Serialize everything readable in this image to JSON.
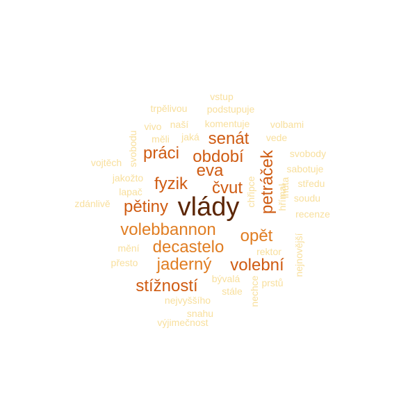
{
  "colors": {
    "darkest": "#5c2606",
    "dark": "#cf5b12",
    "medium": "#e07d22",
    "light": "#f8df9c",
    "background": "#ffffff"
  },
  "words": [
    {
      "text": "vlády",
      "weight": 5,
      "color": "#5c2606"
    },
    {
      "text": "petráček",
      "weight": 4,
      "color": "#cf5b12"
    },
    {
      "text": "senát",
      "weight": 3,
      "color": "#cf5b12"
    },
    {
      "text": "období",
      "weight": 3,
      "color": "#cf5b12"
    },
    {
      "text": "práci",
      "weight": 3,
      "color": "#cf5b12"
    },
    {
      "text": "eva",
      "weight": 3,
      "color": "#cf5b12"
    },
    {
      "text": "fyzik",
      "weight": 3,
      "color": "#cf5b12"
    },
    {
      "text": "čvut",
      "weight": 3,
      "color": "#cf5b12"
    },
    {
      "text": "pětiny",
      "weight": 3,
      "color": "#cf5b12"
    },
    {
      "text": "volebbannon",
      "weight": 3,
      "color": "#e07d22"
    },
    {
      "text": "opět",
      "weight": 3,
      "color": "#e07d22"
    },
    {
      "text": "decastelo",
      "weight": 3,
      "color": "#e07d22"
    },
    {
      "text": "jaderný",
      "weight": 3,
      "color": "#e07d22"
    },
    {
      "text": "volební",
      "weight": 3,
      "color": "#cf5b12"
    },
    {
      "text": "stížností",
      "weight": 3,
      "color": "#cf5b12"
    },
    {
      "text": "vstup",
      "weight": 1,
      "color": "#f8df9c"
    },
    {
      "text": "trpělivou",
      "weight": 1,
      "color": "#f8df9c"
    },
    {
      "text": "podstupuje",
      "weight": 1,
      "color": "#f8df9c"
    },
    {
      "text": "vivo",
      "weight": 1,
      "color": "#f8df9c"
    },
    {
      "text": "naší",
      "weight": 1,
      "color": "#f8df9c"
    },
    {
      "text": "komentuje",
      "weight": 1,
      "color": "#f8df9c"
    },
    {
      "text": "volbami",
      "weight": 1,
      "color": "#f8df9c"
    },
    {
      "text": "měli",
      "weight": 1,
      "color": "#f8df9c"
    },
    {
      "text": "jaká",
      "weight": 1,
      "color": "#f8df9c"
    },
    {
      "text": "vede",
      "weight": 1,
      "color": "#f8df9c"
    },
    {
      "text": "svobodu",
      "weight": 1,
      "color": "#f8df9c"
    },
    {
      "text": "svobody",
      "weight": 1,
      "color": "#f8df9c"
    },
    {
      "text": "vojtěch",
      "weight": 1,
      "color": "#f8df9c"
    },
    {
      "text": "sabotuje",
      "weight": 1,
      "color": "#f8df9c"
    },
    {
      "text": "jakožto",
      "weight": 1,
      "color": "#f8df9c"
    },
    {
      "text": "středu",
      "weight": 1,
      "color": "#f8df9c"
    },
    {
      "text": "lapač",
      "weight": 1,
      "color": "#f8df9c"
    },
    {
      "text": "chřipce",
      "weight": 1,
      "color": "#f8df9c"
    },
    {
      "text": "hřímal",
      "weight": 1,
      "color": "#f8df9c"
    },
    {
      "text": "lhůta",
      "weight": 1,
      "color": "#f8df9c"
    },
    {
      "text": "soudu",
      "weight": 1,
      "color": "#f8df9c"
    },
    {
      "text": "zdánlivě",
      "weight": 1,
      "color": "#f8df9c"
    },
    {
      "text": "recenze",
      "weight": 1,
      "color": "#f8df9c"
    },
    {
      "text": "mění",
      "weight": 1,
      "color": "#f8df9c"
    },
    {
      "text": "rektor",
      "weight": 1,
      "color": "#f8df9c"
    },
    {
      "text": "nejnovější",
      "weight": 1,
      "color": "#f8df9c"
    },
    {
      "text": "přesto",
      "weight": 1,
      "color": "#f8df9c"
    },
    {
      "text": "bývalá",
      "weight": 1,
      "color": "#f8df9c"
    },
    {
      "text": "prstů",
      "weight": 1,
      "color": "#f8df9c"
    },
    {
      "text": "stále",
      "weight": 1,
      "color": "#f8df9c"
    },
    {
      "text": "nechce",
      "weight": 1,
      "color": "#f8df9c"
    },
    {
      "text": "nejvyššího",
      "weight": 1,
      "color": "#f8df9c"
    },
    {
      "text": "snahu",
      "weight": 1,
      "color": "#f8df9c"
    },
    {
      "text": "výjimečnost",
      "weight": 1,
      "color": "#f8df9c"
    }
  ]
}
